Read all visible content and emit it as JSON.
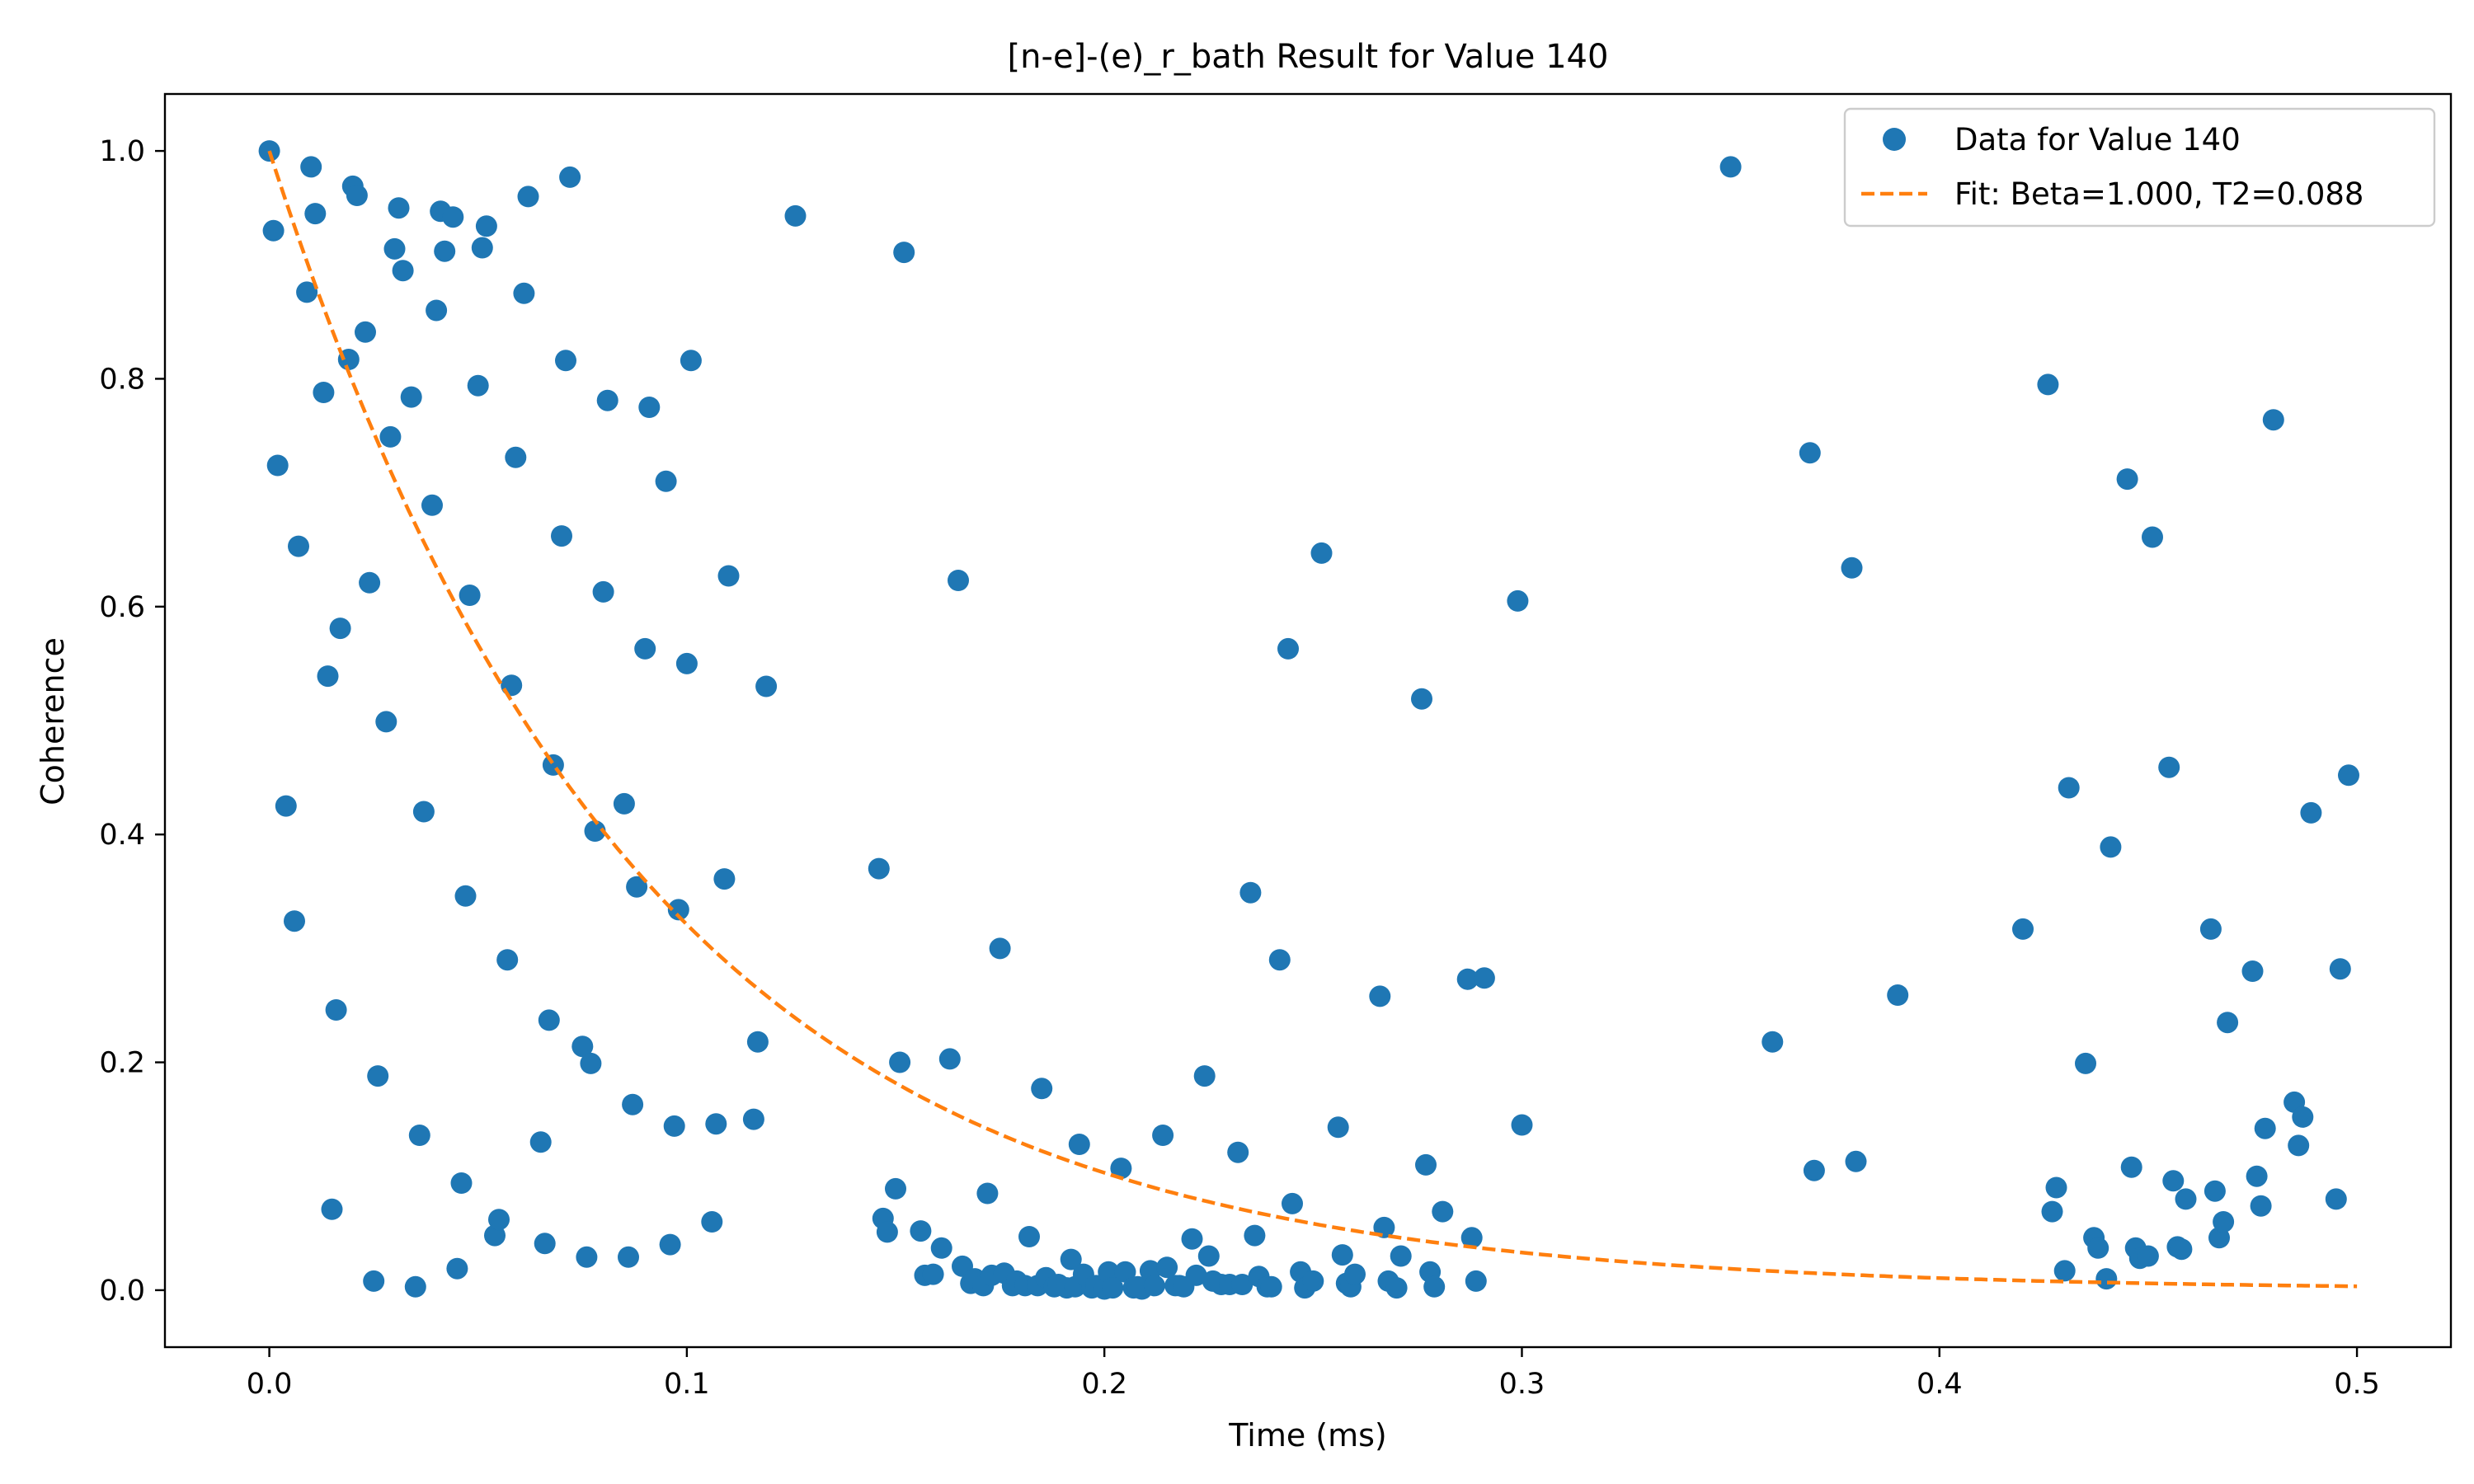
{
  "chart_data": {
    "type": "scatter",
    "title": "[n-e]-(e)_r_bath Result for Value 140",
    "xlabel": "Time (ms)",
    "ylabel": "Coherence",
    "xlim": [
      -0.025,
      0.5225
    ],
    "ylim": [
      -0.05,
      1.05
    ],
    "xticks": [
      0.0,
      0.1,
      0.2,
      0.3,
      0.4,
      0.5
    ],
    "xtick_labels": [
      "0.0",
      "0.1",
      "0.2",
      "0.3",
      "0.4",
      "0.5"
    ],
    "yticks": [
      0.0,
      0.2,
      0.4,
      0.6,
      0.8,
      1.0
    ],
    "ytick_labels": [
      "0.0",
      "0.2",
      "0.4",
      "0.6",
      "0.8",
      "1.0"
    ],
    "grid": false,
    "legend_position": "top-right",
    "colors": {
      "data": "#1f77b4",
      "fit": "#ff7f0e"
    },
    "series": [
      {
        "name": "Data for Value 140",
        "kind": "scatter",
        "color": "#1f77b4",
        "points": [
          [
            0.0,
            1.0
          ],
          [
            0.001,
            0.93
          ],
          [
            0.002,
            0.724
          ],
          [
            0.004,
            0.425
          ],
          [
            0.006,
            0.324
          ],
          [
            0.007,
            0.653
          ],
          [
            0.009,
            0.876
          ],
          [
            0.01,
            0.986
          ],
          [
            0.011,
            0.945
          ],
          [
            0.013,
            0.788
          ],
          [
            0.014,
            0.539
          ],
          [
            0.015,
            0.071
          ],
          [
            0.016,
            0.246
          ],
          [
            0.017,
            0.581
          ],
          [
            0.019,
            0.817
          ],
          [
            0.02,
            0.969
          ],
          [
            0.021,
            0.961
          ],
          [
            0.023,
            0.841
          ],
          [
            0.024,
            0.621
          ],
          [
            0.025,
            0.008
          ],
          [
            0.026,
            0.188
          ],
          [
            0.028,
            0.499
          ],
          [
            0.029,
            0.749
          ],
          [
            0.03,
            0.914
          ],
          [
            0.031,
            0.95
          ],
          [
            0.032,
            0.895
          ],
          [
            0.034,
            0.784
          ],
          [
            0.035,
            0.003
          ],
          [
            0.036,
            0.136
          ],
          [
            0.037,
            0.42
          ],
          [
            0.039,
            0.689
          ],
          [
            0.04,
            0.86
          ],
          [
            0.041,
            0.947
          ],
          [
            0.042,
            0.912
          ],
          [
            0.044,
            0.942
          ],
          [
            0.045,
            0.019
          ],
          [
            0.046,
            0.094
          ],
          [
            0.047,
            0.346
          ],
          [
            0.048,
            0.61
          ],
          [
            0.05,
            0.794
          ],
          [
            0.051,
            0.915
          ],
          [
            0.052,
            0.934
          ],
          [
            0.054,
            0.048
          ],
          [
            0.055,
            0.062
          ],
          [
            0.057,
            0.29
          ],
          [
            0.058,
            0.531
          ],
          [
            0.059,
            0.731
          ],
          [
            0.061,
            0.875
          ],
          [
            0.062,
            0.96
          ],
          [
            0.065,
            0.13
          ],
          [
            0.066,
            0.041
          ],
          [
            0.067,
            0.237
          ],
          [
            0.068,
            0.461
          ],
          [
            0.07,
            0.662
          ],
          [
            0.071,
            0.816
          ],
          [
            0.072,
            0.977
          ],
          [
            0.075,
            0.214
          ],
          [
            0.076,
            0.029
          ],
          [
            0.077,
            0.199
          ],
          [
            0.078,
            0.403
          ],
          [
            0.08,
            0.613
          ],
          [
            0.081,
            0.781
          ],
          [
            0.085,
            0.427
          ],
          [
            0.086,
            0.029
          ],
          [
            0.087,
            0.163
          ],
          [
            0.088,
            0.354
          ],
          [
            0.09,
            0.563
          ],
          [
            0.091,
            0.775
          ],
          [
            0.095,
            0.71
          ],
          [
            0.096,
            0.04
          ],
          [
            0.097,
            0.144
          ],
          [
            0.098,
            0.334
          ],
          [
            0.1,
            0.55
          ],
          [
            0.101,
            0.816
          ],
          [
            0.106,
            0.06
          ],
          [
            0.107,
            0.146
          ],
          [
            0.109,
            0.361
          ],
          [
            0.11,
            0.627
          ],
          [
            0.116,
            0.15
          ],
          [
            0.117,
            0.218
          ],
          [
            0.119,
            0.53
          ],
          [
            0.126,
            0.943
          ],
          [
            0.146,
            0.37
          ],
          [
            0.147,
            0.063
          ],
          [
            0.148,
            0.051
          ],
          [
            0.15,
            0.089
          ],
          [
            0.151,
            0.2
          ],
          [
            0.152,
            0.911
          ],
          [
            0.156,
            0.052
          ],
          [
            0.157,
            0.013
          ],
          [
            0.159,
            0.014
          ],
          [
            0.161,
            0.037
          ],
          [
            0.163,
            0.203
          ],
          [
            0.165,
            0.623
          ],
          [
            0.166,
            0.021
          ],
          [
            0.168,
            0.006
          ],
          [
            0.169,
            0.01
          ],
          [
            0.171,
            0.004
          ],
          [
            0.172,
            0.085
          ],
          [
            0.173,
            0.013
          ],
          [
            0.175,
            0.3
          ],
          [
            0.176,
            0.015
          ],
          [
            0.178,
            0.004
          ],
          [
            0.179,
            0.008
          ],
          [
            0.181,
            0.004
          ],
          [
            0.182,
            0.047
          ],
          [
            0.184,
            0.004
          ],
          [
            0.185,
            0.177
          ],
          [
            0.186,
            0.011
          ],
          [
            0.188,
            0.003
          ],
          [
            0.189,
            0.005
          ],
          [
            0.191,
            0.002
          ],
          [
            0.192,
            0.027
          ],
          [
            0.193,
            0.003
          ],
          [
            0.194,
            0.128
          ],
          [
            0.195,
            0.014
          ],
          [
            0.197,
            0.002
          ],
          [
            0.198,
            0.004
          ],
          [
            0.2,
            0.001
          ],
          [
            0.201,
            0.016
          ],
          [
            0.202,
            0.002
          ],
          [
            0.204,
            0.107
          ],
          [
            0.205,
            0.016
          ],
          [
            0.207,
            0.002
          ],
          [
            0.208,
            0.003
          ],
          [
            0.209,
            0.001
          ],
          [
            0.211,
            0.017
          ],
          [
            0.212,
            0.004
          ],
          [
            0.214,
            0.136
          ],
          [
            0.215,
            0.02
          ],
          [
            0.217,
            0.004
          ],
          [
            0.218,
            0.004
          ],
          [
            0.219,
            0.003
          ],
          [
            0.221,
            0.045
          ],
          [
            0.222,
            0.013
          ],
          [
            0.224,
            0.188
          ],
          [
            0.225,
            0.03
          ],
          [
            0.226,
            0.008
          ],
          [
            0.228,
            0.005
          ],
          [
            0.23,
            0.005
          ],
          [
            0.232,
            0.121
          ],
          [
            0.233,
            0.005
          ],
          [
            0.235,
            0.349
          ],
          [
            0.236,
            0.048
          ],
          [
            0.237,
            0.012
          ],
          [
            0.239,
            0.003
          ],
          [
            0.24,
            0.003
          ],
          [
            0.242,
            0.29
          ],
          [
            0.244,
            0.563
          ],
          [
            0.245,
            0.076
          ],
          [
            0.247,
            0.016
          ],
          [
            0.248,
            0.002
          ],
          [
            0.25,
            0.008
          ],
          [
            0.252,
            0.647
          ],
          [
            0.256,
            0.143
          ],
          [
            0.257,
            0.031
          ],
          [
            0.258,
            0.006
          ],
          [
            0.259,
            0.003
          ],
          [
            0.26,
            0.014
          ],
          [
            0.266,
            0.258
          ],
          [
            0.267,
            0.055
          ],
          [
            0.268,
            0.008
          ],
          [
            0.27,
            0.002
          ],
          [
            0.271,
            0.03
          ],
          [
            0.276,
            0.519
          ],
          [
            0.277,
            0.11
          ],
          [
            0.278,
            0.016
          ],
          [
            0.279,
            0.003
          ],
          [
            0.281,
            0.069
          ],
          [
            0.287,
            0.273
          ],
          [
            0.288,
            0.046
          ],
          [
            0.289,
            0.008
          ],
          [
            0.291,
            0.274
          ],
          [
            0.299,
            0.605
          ],
          [
            0.3,
            0.145
          ],
          [
            0.35,
            0.986
          ],
          [
            0.36,
            0.218
          ],
          [
            0.369,
            0.735
          ],
          [
            0.37,
            0.105
          ],
          [
            0.379,
            0.634
          ],
          [
            0.38,
            0.113
          ],
          [
            0.39,
            0.259
          ],
          [
            0.42,
            0.317
          ],
          [
            0.426,
            0.795
          ],
          [
            0.427,
            0.069
          ],
          [
            0.428,
            0.09
          ],
          [
            0.43,
            0.017
          ],
          [
            0.431,
            0.441
          ],
          [
            0.435,
            0.199
          ],
          [
            0.437,
            0.046
          ],
          [
            0.438,
            0.037
          ],
          [
            0.44,
            0.01
          ],
          [
            0.441,
            0.389
          ],
          [
            0.445,
            0.712
          ],
          [
            0.446,
            0.108
          ],
          [
            0.447,
            0.037
          ],
          [
            0.448,
            0.028
          ],
          [
            0.45,
            0.03
          ],
          [
            0.451,
            0.661
          ],
          [
            0.455,
            0.459
          ],
          [
            0.456,
            0.096
          ],
          [
            0.457,
            0.038
          ],
          [
            0.458,
            0.036
          ],
          [
            0.459,
            0.08
          ],
          [
            0.465,
            0.317
          ],
          [
            0.466,
            0.087
          ],
          [
            0.467,
            0.046
          ],
          [
            0.468,
            0.06
          ],
          [
            0.469,
            0.235
          ],
          [
            0.475,
            0.28
          ],
          [
            0.476,
            0.1
          ],
          [
            0.477,
            0.074
          ],
          [
            0.478,
            0.142
          ],
          [
            0.48,
            0.764
          ],
          [
            0.485,
            0.165
          ],
          [
            0.486,
            0.127
          ],
          [
            0.487,
            0.152
          ],
          [
            0.489,
            0.419
          ],
          [
            0.495,
            0.08
          ],
          [
            0.496,
            0.282
          ],
          [
            0.498,
            0.452
          ]
        ]
      },
      {
        "name": "Fit: Beta=1.000, T2=0.088",
        "kind": "line",
        "style": "dashed",
        "color": "#ff7f0e",
        "model": "exp(-(t/T2)^beta)",
        "beta": 1.0,
        "t2": 0.088,
        "x_range": [
          0.0,
          0.5
        ]
      }
    ]
  }
}
